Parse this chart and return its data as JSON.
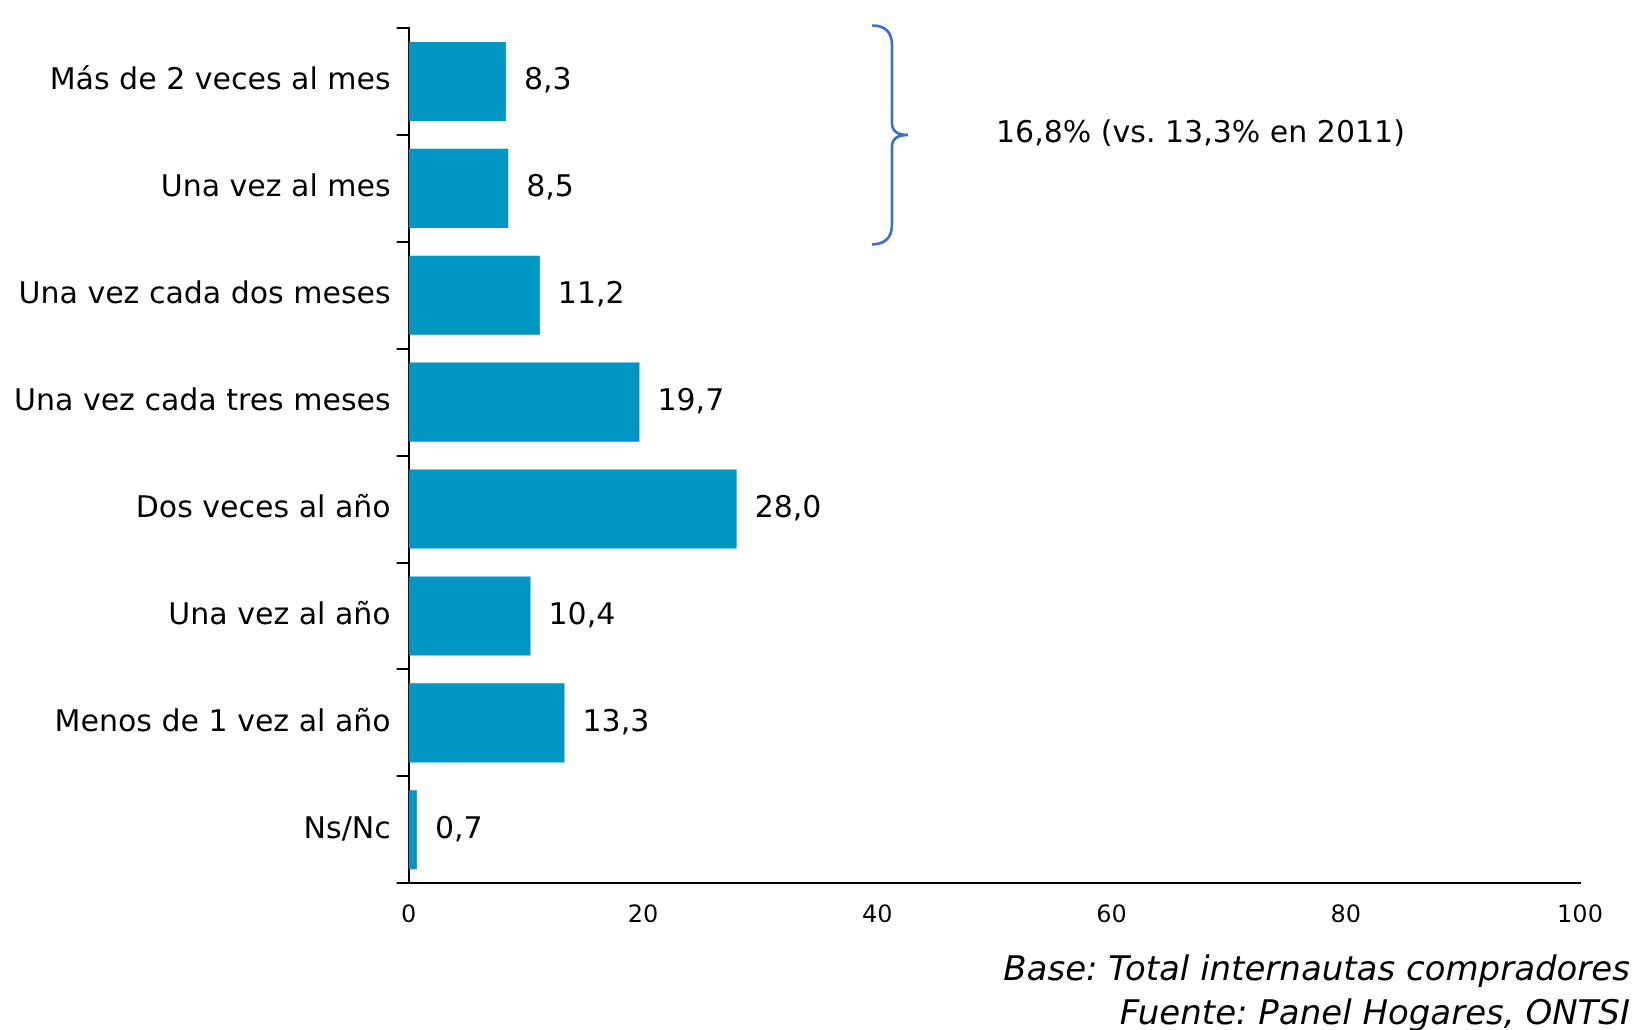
{
  "chart_data": {
    "type": "bar",
    "orientation": "horizontal",
    "categories": [
      "Más de 2 veces al mes",
      "Una vez al mes",
      "Una vez cada dos meses",
      "Una vez cada tres meses",
      "Dos veces al año",
      "Una vez al año",
      "Menos de 1 vez al año",
      "Ns/Nc"
    ],
    "values": [
      8.3,
      8.5,
      11.2,
      19.7,
      28.0,
      10.4,
      13.3,
      0.7
    ],
    "value_labels": [
      "8,3",
      "8,5",
      "11,2",
      "19,7",
      "28,0",
      "10,4",
      "13,3",
      "0,7"
    ],
    "color": "#0096c3",
    "xlim": [
      0,
      100
    ],
    "xticks": [
      0,
      20,
      40,
      60,
      80,
      100
    ],
    "grid": false,
    "legend": false,
    "annotations": [
      "16,8% (vs. 13,3% en 2011)",
      "Base: Total internautas compradores",
      "Fuente: Panel Hogares, ONTSI"
    ]
  }
}
